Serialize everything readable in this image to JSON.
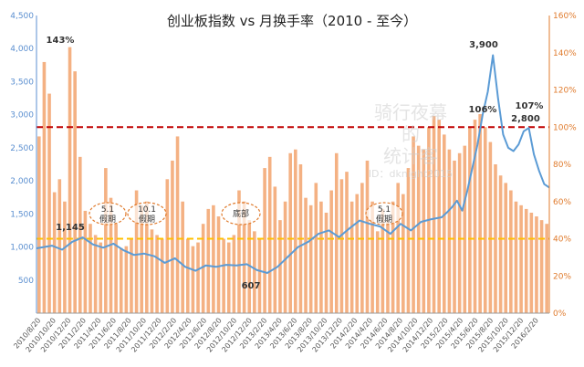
{
  "chart_data": {
    "type": "bar+line",
    "title": "创业板指数 vs 月换手率（2010 - 至今）",
    "left_axis": {
      "ticks": [
        "500",
        "1,000",
        "1,500",
        "2,000",
        "2,500",
        "3,000",
        "3,500",
        "4,000",
        "4,500"
      ],
      "ylim": [
        0,
        4500
      ]
    },
    "right_axis": {
      "ticks": [
        "0%",
        "20%",
        "40%",
        "60%",
        "80%",
        "100%",
        "120%",
        "140%",
        "160%"
      ],
      "ylim": [
        0,
        160
      ]
    },
    "x_ticks": [
      "2010/8/20",
      "2010/10/20",
      "2010/12/20",
      "2011/2/20",
      "2011/4/20",
      "2011/6/20",
      "2011/8/20",
      "2011/10/20",
      "2011/12/20",
      "2012/2/20",
      "2012/4/20",
      "2012/6/20",
      "2012/8/20",
      "2012/10/20",
      "2012/12/20",
      "2013/2/20",
      "2013/4/20",
      "2013/6/20",
      "2013/8/20",
      "2013/10/20",
      "2013/12/20",
      "2014/2/20",
      "2014/4/20",
      "2014/6/20",
      "2014/8/20",
      "2014/10/20",
      "2014/12/20",
      "2015/2/20",
      "2015/4/20",
      "2015/6/20",
      "2015/8/20",
      "2015/10/20",
      "2015/12/20",
      "2016/2/20"
    ],
    "index_line": {
      "color": "#5b9bd5",
      "t": [
        0,
        0.03,
        0.05,
        0.07,
        0.09,
        0.11,
        0.13,
        0.15,
        0.17,
        0.19,
        0.21,
        0.23,
        0.25,
        0.27,
        0.29,
        0.31,
        0.33,
        0.35,
        0.37,
        0.39,
        0.41,
        0.43,
        0.45,
        0.47,
        0.49,
        0.51,
        0.53,
        0.55,
        0.57,
        0.59,
        0.61,
        0.63,
        0.65,
        0.67,
        0.69,
        0.71,
        0.73,
        0.75,
        0.77,
        0.79,
        0.8,
        0.81,
        0.82,
        0.83,
        0.84,
        0.85,
        0.86,
        0.87,
        0.88,
        0.89,
        0.9,
        0.91,
        0.92,
        0.93,
        0.94,
        0.95,
        0.96,
        0.97,
        0.98,
        0.99,
        1.0
      ],
      "values": [
        980,
        1020,
        960,
        1080,
        1145,
        1040,
        990,
        1050,
        950,
        880,
        900,
        860,
        760,
        830,
        700,
        640,
        720,
        700,
        730,
        720,
        740,
        650,
        607,
        700,
        850,
        1000,
        1080,
        1200,
        1250,
        1150,
        1280,
        1400,
        1350,
        1310,
        1200,
        1350,
        1250,
        1380,
        1420,
        1450,
        1520,
        1600,
        1700,
        1550,
        1850,
        2200,
        2550,
        3000,
        3350,
        3900,
        3250,
        2700,
        2500,
        2450,
        2550,
        2750,
        2800,
        2400,
        2150,
        1950,
        1900
      ]
    },
    "turnover_bars": {
      "color": "#f4b183",
      "count": 100,
      "values": [
        95,
        135,
        118,
        65,
        72,
        60,
        143,
        130,
        84,
        55,
        48,
        42,
        38,
        78,
        62,
        48,
        35,
        36,
        40,
        66,
        58,
        60,
        45,
        42,
        40,
        72,
        82,
        95,
        60,
        40,
        36,
        38,
        48,
        56,
        58,
        52,
        40,
        38,
        42,
        66,
        60,
        50,
        44,
        40,
        78,
        84,
        68,
        50,
        60,
        86,
        88,
        80,
        62,
        58,
        70,
        60,
        54,
        66,
        86,
        72,
        76,
        60,
        64,
        70,
        82,
        60,
        44,
        56,
        50,
        60,
        70,
        64,
        78,
        95,
        90,
        88,
        100,
        106,
        104,
        96,
        88,
        82,
        86,
        90,
        100,
        104,
        107,
        100,
        92,
        80,
        74,
        70,
        66,
        60,
        58,
        56,
        54,
        52,
        50,
        48
      ]
    },
    "ref_lines": [
      {
        "axis": "right",
        "value": 100,
        "color": "#c00000"
      },
      {
        "axis": "right",
        "value": 40,
        "color": "#ffc000"
      }
    ],
    "annotations": [
      {
        "text": "143%",
        "kind": "label"
      },
      {
        "text": "1,145",
        "kind": "label"
      },
      {
        "text": "607",
        "kind": "label"
      },
      {
        "text": "3,900",
        "kind": "label"
      },
      {
        "text": "106%",
        "kind": "label"
      },
      {
        "text": "107%",
        "kind": "label"
      },
      {
        "text": "2,800",
        "kind": "label"
      }
    ],
    "ovals": [
      {
        "line1": "5.1",
        "line2": "假期"
      },
      {
        "line1": "10.1",
        "line2": "假期"
      },
      {
        "line1": "底部",
        "line2": ""
      },
      {
        "line1": "5.1",
        "line2": "假期"
      }
    ],
    "watermark": {
      "line1": "骑行夜幕",
      "line2": "的",
      "line3": "统计客",
      "line4": "ID：dknight2015"
    }
  }
}
